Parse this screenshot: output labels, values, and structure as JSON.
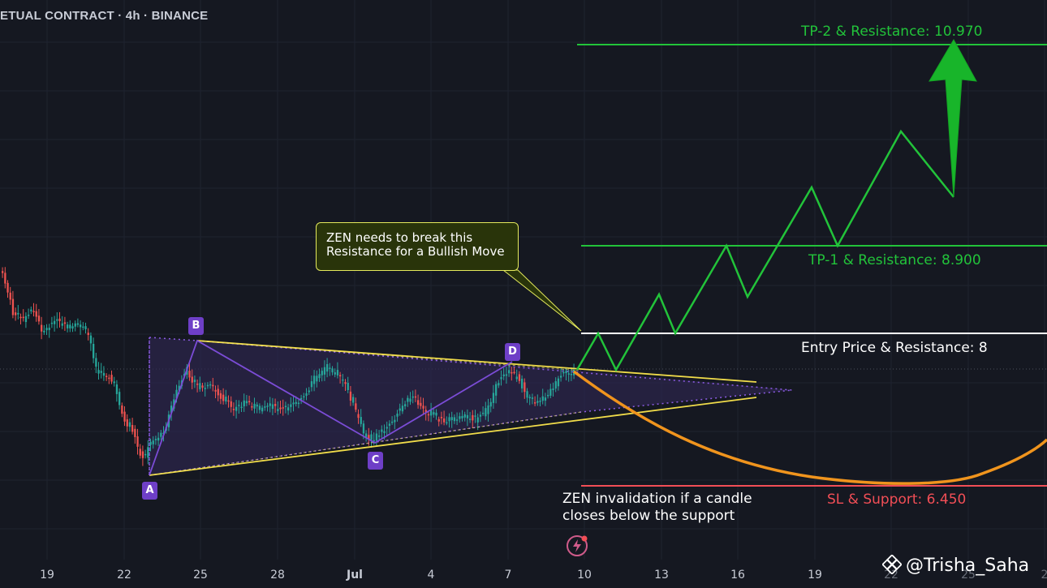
{
  "header": {
    "title": "ETUAL CONTRACT · 4h · BINANCE"
  },
  "annotations": {
    "tp2": "TP-2 & Resistance: 10.970",
    "tp1": "TP-1 & Resistance: 8.900",
    "entry": "Entry Price & Resistance: 8",
    "sl": "SL & Support: 6.450",
    "callout_line1": "ZEN needs to break this",
    "callout_line2": "Resistance for a Bullish Move",
    "invalidation_line1": "ZEN invalidation if a candle",
    "invalidation_line2": "closes below the support",
    "points": [
      "A",
      "B",
      "C",
      "D"
    ],
    "watermark": "@Trisha_Saha"
  },
  "icons": {
    "watermark": "binance-logo-icon",
    "flash": "lightning-icon"
  },
  "colors": {
    "background": "#151821",
    "up": "#26a69a",
    "down": "#ef5350",
    "target": "#22c33a",
    "stop": "#f24e56",
    "triangle": "#f0dc4a",
    "pattern": "#7b4cd6",
    "projection": "#f0941d"
  },
  "chart_data": {
    "type": "candlestick",
    "timeframe": "4h",
    "exchange": "BINANCE",
    "x_ticks": [
      "19",
      "22",
      "25",
      "28",
      "Jul",
      "4",
      "7",
      "10",
      "13",
      "16",
      "19",
      "22",
      "25",
      "2"
    ],
    "ylim": [
      6.0,
      11.5
    ],
    "levels": [
      {
        "name": "TP-2 & Resistance",
        "value": 10.97
      },
      {
        "name": "TP-1 & Resistance",
        "value": 8.9
      },
      {
        "name": "Entry Price & Resistance",
        "value": 8.0
      },
      {
        "name": "SL & Support",
        "value": 6.45
      }
    ],
    "pattern_points": [
      {
        "label": "A",
        "date": "Jun 23",
        "price": 6.55
      },
      {
        "label": "B",
        "date": "Jun 24",
        "price": 7.93
      },
      {
        "label": "C",
        "date": "Jul 1",
        "price": 6.9
      },
      {
        "label": "D",
        "date": "Jul 7",
        "price": 7.57
      }
    ]
  }
}
